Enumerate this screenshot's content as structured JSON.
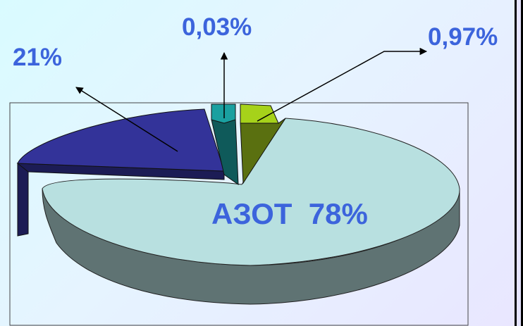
{
  "chart_data": {
    "type": "pie",
    "style": "3d-exploded",
    "slices": [
      {
        "label": "АЗОТ  78%",
        "value": 78,
        "top_color": "#b8e0e0",
        "side_color": "#5f7373"
      },
      {
        "label": "21%",
        "value": 21,
        "top_color": "#333399",
        "side_color": "#1c1c55"
      },
      {
        "label": "0,03%",
        "value": 0.03,
        "top_color": "#1aa0a0",
        "side_color": "#0f5a5a"
      },
      {
        "label": "0,97%",
        "value": 0.97,
        "top_color": "#a6d21a",
        "side_color": "#5a7010"
      }
    ],
    "label_color": "#3c64dc"
  }
}
